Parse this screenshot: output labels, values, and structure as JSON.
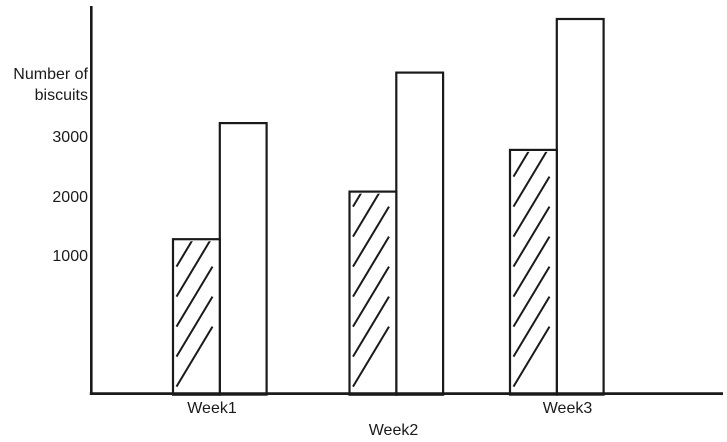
{
  "chart_data": {
    "type": "bar",
    "ylabel": "Number of biscuits",
    "categories": [
      "Week1",
      "Week2",
      "Week3"
    ],
    "series": [
      {
        "name": "hatched-bars",
        "fill_style": "diagonal-hatch",
        "values": [
          1300,
          2100,
          2800
        ]
      },
      {
        "name": "plain-bars",
        "fill_style": "plain-white",
        "values": [
          3250,
          4100,
          5000
        ]
      }
    ],
    "yticks": [
      1000,
      2000,
      3000
    ],
    "ylim": [
      0,
      5100
    ],
    "grid": false,
    "legend_position": "none"
  },
  "colors": {
    "stroke": "#1a1a1a",
    "background": "#ffffff",
    "bar_fill": "#ffffff"
  }
}
